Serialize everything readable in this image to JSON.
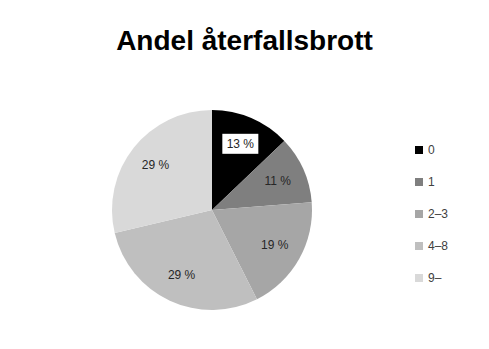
{
  "chart_data": {
    "type": "pie",
    "title": "Andel återfallsbrott",
    "categories": [
      "0",
      "1",
      "2–3",
      "4–8",
      "9–"
    ],
    "values": [
      13,
      11,
      19,
      29,
      29
    ],
    "value_labels": [
      "13 %",
      "11 %",
      "19 %",
      "29 %",
      "29 %"
    ],
    "colors": [
      "#000000",
      "#7f7f7f",
      "#a6a6a6",
      "#bfbfbf",
      "#d9d9d9"
    ],
    "data_labels": true,
    "legend": "right"
  }
}
